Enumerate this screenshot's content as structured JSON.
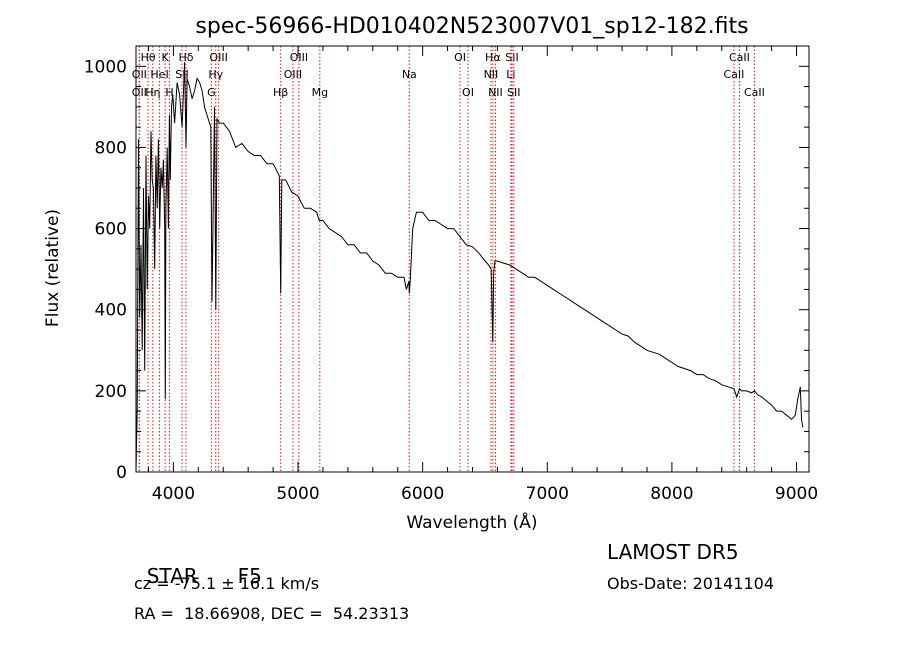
{
  "chart_data": {
    "type": "line",
    "title": "spec-56966-HD010402N523007V01_sp12-182.fits",
    "xlabel": "Wavelength (Å)",
    "ylabel": "Flux (relative)",
    "xlim": [
      3700,
      9100
    ],
    "ylim": [
      0,
      1050
    ],
    "xticks": [
      4000,
      5000,
      6000,
      7000,
      8000,
      9000
    ],
    "yticks": [
      0,
      200,
      400,
      600,
      800,
      1000
    ],
    "grid": false,
    "series": [
      {
        "x": [
          3700,
          3710,
          3720,
          3730,
          3740,
          3750,
          3760,
          3770,
          3780,
          3790,
          3800,
          3810,
          3820,
          3830,
          3840,
          3850,
          3860,
          3870,
          3880,
          3890,
          3900,
          3910,
          3920,
          3930,
          3935,
          3940,
          3950,
          3960,
          3968,
          3975,
          3985,
          3995,
          4010,
          4030,
          4050,
          4070,
          4090,
          4101,
          4110,
          4130,
          4150,
          4170,
          4190,
          4210,
          4230,
          4250,
          4270,
          4290,
          4300,
          4310,
          4330,
          4340,
          4350,
          4370,
          4400,
          4450,
          4500,
          4550,
          4600,
          4650,
          4700,
          4750,
          4800,
          4850,
          4861,
          4870,
          4900,
          4950,
          5000,
          5050,
          5100,
          5150,
          5170,
          5200,
          5250,
          5300,
          5350,
          5400,
          5450,
          5500,
          5550,
          5600,
          5650,
          5700,
          5750,
          5800,
          5850,
          5870,
          5890,
          5893,
          5900,
          5920,
          5950,
          6000,
          6050,
          6100,
          6150,
          6200,
          6250,
          6300,
          6350,
          6400,
          6450,
          6500,
          6530,
          6550,
          6563,
          6570,
          6580,
          6600,
          6650,
          6700,
          6750,
          6800,
          6850,
          6900,
          6950,
          7000,
          7050,
          7100,
          7150,
          7200,
          7250,
          7300,
          7350,
          7400,
          7450,
          7500,
          7550,
          7600,
          7650,
          7700,
          7750,
          7800,
          7850,
          7900,
          7950,
          8000,
          8050,
          8100,
          8150,
          8200,
          8250,
          8300,
          8350,
          8400,
          8450,
          8498,
          8520,
          8542,
          8560,
          8600,
          8640,
          8662,
          8690,
          8720,
          8760,
          8800,
          8840,
          8880,
          8920,
          8960,
          8990,
          9010,
          9030,
          9040,
          9050
        ],
        "values": [
          0,
          150,
          820,
          380,
          560,
          300,
          700,
          250,
          780,
          450,
          680,
          600,
          840,
          720,
          700,
          500,
          780,
          650,
          820,
          600,
          750,
          700,
          770,
          600,
          180,
          650,
          800,
          600,
          880,
          720,
          900,
          930,
          860,
          960,
          930,
          850,
          1010,
          800,
          970,
          950,
          920,
          940,
          970,
          960,
          940,
          900,
          880,
          860,
          850,
          420,
          900,
          400,
          870,
          860,
          860,
          840,
          800,
          810,
          790,
          780,
          780,
          760,
          760,
          730,
          440,
          720,
          720,
          690,
          680,
          650,
          650,
          640,
          620,
          620,
          600,
          590,
          580,
          560,
          560,
          540,
          540,
          520,
          510,
          490,
          490,
          480,
          480,
          450,
          470,
          440,
          470,
          600,
          640,
          640,
          620,
          620,
          610,
          600,
          600,
          580,
          560,
          555,
          540,
          520,
          510,
          500,
          320,
          490,
          520,
          520,
          515,
          510,
          500,
          490,
          480,
          480,
          470,
          460,
          450,
          440,
          430,
          420,
          410,
          400,
          390,
          380,
          370,
          360,
          350,
          340,
          335,
          320,
          310,
          300,
          295,
          290,
          280,
          270,
          260,
          255,
          250,
          240,
          240,
          230,
          225,
          215,
          210,
          205,
          185,
          205,
          200,
          200,
          195,
          200,
          190,
          185,
          175,
          165,
          150,
          150,
          140,
          130,
          140,
          180,
          210,
          130,
          110
        ]
      }
    ],
    "line_markers": [
      {
        "label": "Hθ",
        "x": 3797,
        "row": 1
      },
      {
        "label": "OII",
        "x": 3727,
        "row": 2
      },
      {
        "label": "OII",
        "x": 3727,
        "row": 3
      },
      {
        "label": "Hη",
        "x": 3835,
        "row": 3
      },
      {
        "label": "K",
        "x": 3934,
        "row": 1
      },
      {
        "label": "HeI",
        "x": 3889,
        "row": 2
      },
      {
        "label": "H",
        "x": 3969,
        "row": 3
      },
      {
        "label": "Hδ",
        "x": 4101,
        "row": 1
      },
      {
        "label": "SII",
        "x": 4069,
        "row": 2
      },
      {
        "label": "OIII",
        "x": 4363,
        "row": 1
      },
      {
        "label": "Hγ",
        "x": 4340,
        "row": 2
      },
      {
        "label": "G",
        "x": 4305,
        "row": 3
      },
      {
        "label": "OIII",
        "x": 5007,
        "row": 1
      },
      {
        "label": "OIII",
        "x": 4959,
        "row": 2
      },
      {
        "label": "Hβ",
        "x": 4861,
        "row": 3
      },
      {
        "label": "Mg",
        "x": 5175,
        "row": 3
      },
      {
        "label": "Na",
        "x": 5893,
        "row": 2
      },
      {
        "label": "OI",
        "x": 6300,
        "row": 1
      },
      {
        "label": "OI",
        "x": 6364,
        "row": 3
      },
      {
        "label": "Hα",
        "x": 6563,
        "row": 1
      },
      {
        "label": "SII",
        "x": 6717,
        "row": 1
      },
      {
        "label": "NII",
        "x": 6548,
        "row": 2
      },
      {
        "label": "Li",
        "x": 6708,
        "row": 2
      },
      {
        "label": "NII",
        "x": 6584,
        "row": 3
      },
      {
        "label": "SII",
        "x": 6731,
        "row": 3
      },
      {
        "label": "CaII",
        "x": 8542,
        "row": 1
      },
      {
        "label": "CaII",
        "x": 8498,
        "row": 2
      },
      {
        "label": "CaII",
        "x": 8662,
        "row": 3
      }
    ]
  },
  "info": {
    "class_label": "STAR",
    "subclass": "F5",
    "survey": "LAMOST DR5",
    "cz_line": "cz = -75.1 ± 16.1 km/s",
    "obs_date": "Obs-Date: 20141104",
    "coords": "RA =  18.66908, DEC =  54.23313"
  }
}
